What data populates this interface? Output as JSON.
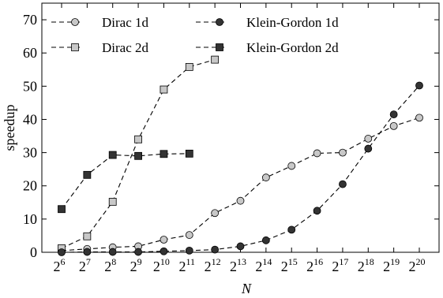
{
  "chart_data": {
    "type": "line",
    "xlabel": "N",
    "ylabel": "speedup",
    "x_exponents": [
      6,
      7,
      8,
      9,
      10,
      11,
      12,
      13,
      14,
      15,
      16,
      17,
      18,
      19,
      20
    ],
    "x_tick_base": "2",
    "xlim": [
      6,
      20
    ],
    "ylim": [
      0,
      75
    ],
    "y_ticks": [
      0,
      10,
      20,
      30,
      40,
      50,
      60,
      70
    ],
    "grid": false,
    "legend_position": "top-left",
    "series": [
      {
        "name": "Dirac 1d",
        "marker": "circle",
        "color": "#c8c8c8",
        "x": [
          6,
          7,
          8,
          9,
          10,
          11,
          12,
          13,
          14,
          15,
          16,
          17,
          18,
          19,
          20
        ],
        "values": [
          0.5,
          1.0,
          1.5,
          1.8,
          3.8,
          5.2,
          11.8,
          15.5,
          22.5,
          26.0,
          29.8,
          30.0,
          34.2,
          38.0,
          40.5
        ]
      },
      {
        "name": "Dirac 2d",
        "marker": "square",
        "color": "#c8c8c8",
        "x": [
          6,
          7,
          8,
          9,
          10,
          11,
          12
        ],
        "values": [
          1.2,
          4.8,
          15.2,
          34.0,
          49.0,
          55.8,
          58.0
        ]
      },
      {
        "name": "Klein-Gordon 1d",
        "marker": "circle",
        "color": "#333333",
        "x": [
          6,
          7,
          8,
          9,
          10,
          11,
          12,
          13,
          14,
          15,
          16,
          17,
          18,
          19,
          20
        ],
        "values": [
          0.0,
          0.1,
          0.1,
          0.1,
          0.3,
          0.5,
          0.8,
          1.8,
          3.6,
          6.8,
          12.5,
          20.5,
          31.2,
          41.5,
          50.2
        ]
      },
      {
        "name": "Klein-Gordon 2d",
        "marker": "square",
        "color": "#333333",
        "x": [
          6,
          7,
          8,
          9,
          10,
          11
        ],
        "values": [
          13.0,
          23.3,
          29.3,
          29.0,
          29.6,
          29.7
        ]
      }
    ]
  }
}
